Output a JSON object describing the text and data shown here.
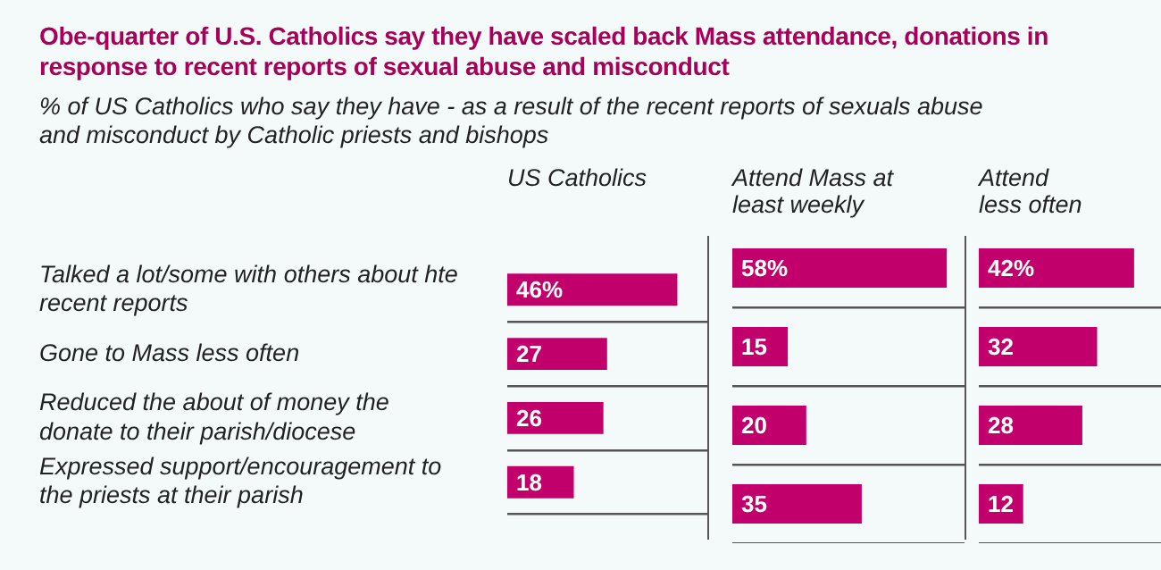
{
  "chart_data": [
    {
      "type": "other",
      "title": "Obe-quarter of U.S. Catholics say they have scaled back Mass attendance, donations in response to recent reports of sexual abuse and misconduct",
      "subtitle": "% of US Catholics who say they have - as a result of the recent reports of sexuals abuse and misconduct by Catholic priests and bishops"
    },
    {
      "type": "bar",
      "orientation": "horizontal",
      "title": "US Catholics",
      "categories": [
        "Talked a lot/some with others about hte recent reports",
        "Gone to Mass less often",
        "Reduced the about of money the donate to their parish/diocese",
        "Expressed support/encouragement to the priests at their parish"
      ],
      "values": [
        46,
        27,
        26,
        18
      ],
      "value_labels": [
        "46%",
        "27",
        "26",
        "18"
      ],
      "color": "#c2006b",
      "grid": "y",
      "tick_labels": "y"
    },
    {
      "type": "bar",
      "orientation": "horizontal",
      "title": "Attend Mass at least weekly",
      "categories": [
        null,
        null,
        null,
        null
      ],
      "values": [
        58,
        15,
        20,
        35
      ],
      "value_labels": [
        "58%",
        "15",
        "20",
        "35"
      ],
      "color": "#c2006b",
      "grid": "y",
      "tick_labels": false
    },
    {
      "type": "bar",
      "orientation": "horizontal",
      "title": "Attend less often",
      "categories": [
        null,
        null,
        null,
        null
      ],
      "values": [
        42,
        32,
        28,
        12
      ],
      "value_labels": [
        "42%",
        "32",
        "28",
        "12"
      ],
      "color": "#c2006b",
      "grid": "y",
      "tick_labels": false
    }
  ]
}
